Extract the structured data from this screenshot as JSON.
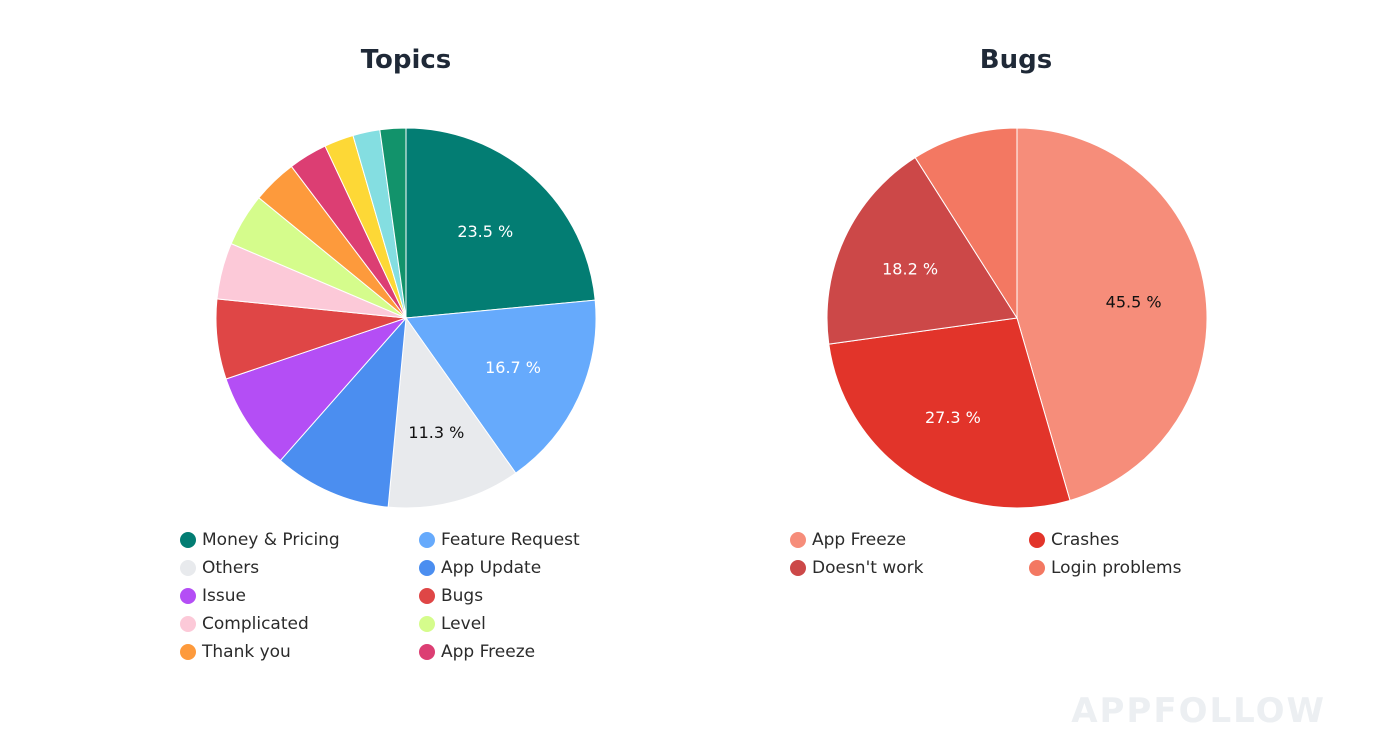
{
  "chart_data": [
    {
      "type": "pie",
      "title": "Topics",
      "slices": [
        {
          "label": "Money & Pricing",
          "value": 23.5,
          "color": "#037d73",
          "data_label": "23.5 %",
          "label_color": "#ffffff"
        },
        {
          "label": "Feature Request",
          "value": 16.7,
          "color": "#66aafc",
          "data_label": "16.7 %",
          "label_color": "#ffffff"
        },
        {
          "label": "Others",
          "value": 11.3,
          "color": "#e8eaed",
          "data_label": "11.3 %",
          "label_color": "#111111"
        },
        {
          "label": "App Update",
          "value": 10.0,
          "color": "#4b8ef0",
          "data_label": "",
          "label_color": "#ffffff"
        },
        {
          "label": "Issue",
          "value": 8.3,
          "color": "#b44ef5",
          "data_label": "",
          "label_color": "#ffffff"
        },
        {
          "label": "Bugs",
          "value": 6.8,
          "color": "#df4646",
          "data_label": "",
          "label_color": "#ffffff"
        },
        {
          "label": "Complicated",
          "value": 4.8,
          "color": "#fcc9d8",
          "data_label": "",
          "label_color": "#111111"
        },
        {
          "label": "Level",
          "value": 4.5,
          "color": "#d5fc8c",
          "data_label": "",
          "label_color": "#111111"
        },
        {
          "label": "Thank you",
          "value": 3.8,
          "color": "#fd9a3c",
          "data_label": "",
          "label_color": "#111111"
        },
        {
          "label": "App Freeze",
          "value": 3.3,
          "color": "#dc3e73",
          "data_label": "",
          "label_color": "#ffffff"
        },
        {
          "label": "",
          "value": 2.5,
          "color": "#fdd836",
          "data_label": "",
          "label_color": "#111111"
        },
        {
          "label": "",
          "value": 2.3,
          "color": "#84dee1",
          "data_label": "",
          "label_color": "#111111"
        },
        {
          "label": "",
          "value": 2.2,
          "color": "#12936b",
          "data_label": "",
          "label_color": "#ffffff"
        }
      ],
      "legend": [
        "Money & Pricing",
        "Feature Request",
        "Others",
        "App Update",
        "Issue",
        "Bugs",
        "Complicated",
        "Level",
        "Thank you",
        "App Freeze"
      ]
    },
    {
      "type": "pie",
      "title": "Bugs",
      "slices": [
        {
          "label": "App Freeze",
          "value": 45.5,
          "color": "#f68d7a",
          "data_label": "45.5 %",
          "label_color": "#111111"
        },
        {
          "label": "Crashes",
          "value": 27.3,
          "color": "#e2342a",
          "data_label": "27.3 %",
          "label_color": "#ffffff"
        },
        {
          "label": "Doesn't work",
          "value": 18.2,
          "color": "#cc4848",
          "data_label": "18.2 %",
          "label_color": "#ffffff"
        },
        {
          "label": "Login problems",
          "value": 9.0,
          "color": "#f37862",
          "data_label": "",
          "label_color": "#111111"
        }
      ],
      "legend": [
        "App Freeze",
        "Crashes",
        "Doesn't work",
        "Login problems"
      ]
    }
  ],
  "watermark": "APPFOLLOW"
}
